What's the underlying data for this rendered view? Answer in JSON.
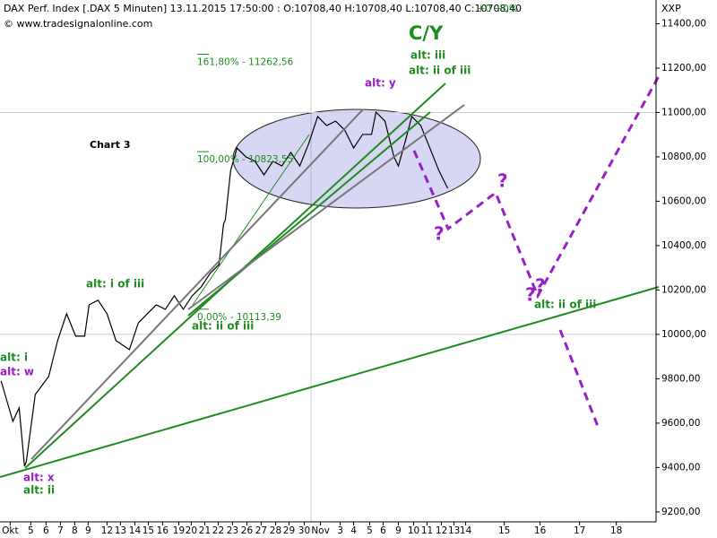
{
  "chart_data": {
    "type": "line",
    "title": "DAX Perf. Index [.DAX  5 Minuten] 13.11.2015 17:50:00 : O:10708,40 H:10708,40 L:10708,40 C:10708,40",
    "subtitle": "+0 +0%",
    "source": "© www.tradesignalonline.com",
    "y_label": "XXP",
    "annotations": [
      "Chart 3",
      "C/Y",
      "alt: iii",
      "alt: ii of iii",
      "alt: y",
      "alt: i of iii",
      "alt: ii of iii",
      "alt: ii of iii",
      "alt: i",
      "alt: w",
      "alt: x",
      "alt: ii",
      "?",
      "?",
      "?",
      "?"
    ],
    "fib_levels": [
      {
        "value": 11262.56,
        "label": "161,80% - 11262,56"
      },
      {
        "value": 10823.55,
        "label": "100,00% - 10823,55"
      },
      {
        "value": 10113.39,
        "label": "0,00% - 10113,39"
      }
    ],
    "fib_color": "#1e8c1e",
    "series": [
      {
        "color": "#000000",
        "x": [
          -2.12,
          -1.28,
          -0.83,
          -0.45,
          -0.32,
          0.32,
          1.28,
          1.92,
          2.56,
          3.21,
          3.85,
          4.17,
          4.81,
          5.45,
          6.09,
          7.05,
          7.69,
          8.33,
          8.97,
          9.62,
          10.26,
          10.9,
          11.54,
          12.18,
          12.82,
          13.46,
          13.78,
          13.91,
          14.29,
          14.74,
          15.38,
          16.03,
          16.67,
          17.31,
          17.95,
          18.59,
          19.23,
          19.87,
          20.51,
          21.15,
          21.79,
          22.44,
          23.08,
          23.72,
          24.36,
          24.68,
          25.32,
          25.96,
          26.28,
          26.73,
          27.24,
          27.88,
          28.53,
          29.17,
          29.81
        ],
        "values": [
          9790,
          9608,
          9669,
          9406,
          9426,
          9729,
          9810,
          9972,
          10093,
          9992,
          9992,
          10133,
          10154,
          10093,
          9972,
          9931,
          10052,
          10093,
          10133,
          10113,
          10174,
          10113,
          10174,
          10214,
          10275,
          10315,
          10497,
          10517,
          10739,
          10840,
          10800,
          10780,
          10719,
          10780,
          10759,
          10820,
          10759,
          10860,
          10982,
          10941,
          10961,
          10921,
          10840,
          10901,
          10901,
          11002,
          10961,
          10800,
          10759,
          10860,
          10982,
          10941,
          10840,
          10739,
          10658
        ]
      }
    ],
    "xlim": [
      -2.2,
      44.7
    ],
    "ylim": [
      9155,
      11507
    ],
    "xticks": [
      {
        "value": -1.47,
        "label": "Okt"
      },
      {
        "value": 0,
        "label": "5"
      },
      {
        "value": 1.09,
        "label": "6"
      },
      {
        "value": 2.12,
        "label": "7"
      },
      {
        "value": 3.14,
        "label": "8"
      },
      {
        "value": 4.1,
        "label": "9"
      },
      {
        "value": 5.45,
        "label": "12"
      },
      {
        "value": 6.41,
        "label": "13"
      },
      {
        "value": 7.44,
        "label": "14"
      },
      {
        "value": 8.4,
        "label": "15"
      },
      {
        "value": 9.42,
        "label": "16"
      },
      {
        "value": 10.58,
        "label": "19"
      },
      {
        "value": 11.47,
        "label": "20"
      },
      {
        "value": 12.44,
        "label": "21"
      },
      {
        "value": 13.4,
        "label": "22"
      },
      {
        "value": 14.42,
        "label": "23"
      },
      {
        "value": 15.45,
        "label": "26"
      },
      {
        "value": 16.47,
        "label": "27"
      },
      {
        "value": 17.5,
        "label": "28"
      },
      {
        "value": 18.46,
        "label": "29"
      },
      {
        "value": 19.55,
        "label": "30"
      },
      {
        "value": 20.71,
        "label": "Nov"
      },
      {
        "value": 22.12,
        "label": "3"
      },
      {
        "value": 23.08,
        "label": "4"
      },
      {
        "value": 24.23,
        "label": "5"
      },
      {
        "value": 25.19,
        "label": "6"
      },
      {
        "value": 26.28,
        "label": "9"
      },
      {
        "value": 27.37,
        "label": "10"
      },
      {
        "value": 28.33,
        "label": "11"
      },
      {
        "value": 29.36,
        "label": "12"
      },
      {
        "value": 30.26,
        "label": "13"
      },
      {
        "value": 31.09,
        "label": "14"
      },
      {
        "value": 33.85,
        "label": "15"
      },
      {
        "value": 36.41,
        "label": "16"
      },
      {
        "value": 39.23,
        "label": "17"
      },
      {
        "value": 41.86,
        "label": "18"
      }
    ],
    "yticks": [
      {
        "value": 9200,
        "label": "9200,00"
      },
      {
        "value": 9400,
        "label": "9400,00"
      },
      {
        "value": 9600,
        "label": "9600,00"
      },
      {
        "value": 9800,
        "label": "9800,00"
      },
      {
        "value": 10000,
        "label": "10000,00"
      },
      {
        "value": 10200,
        "label": "10200,00"
      },
      {
        "value": 10400,
        "label": "10400,00"
      },
      {
        "value": 10600,
        "label": "10600,00"
      },
      {
        "value": 10800,
        "label": "10800,00"
      },
      {
        "value": 11000,
        "label": "11000,00"
      },
      {
        "value": 11200,
        "label": "11200,00"
      },
      {
        "value": 11400,
        "label": "11400,00"
      }
    ],
    "grid": true
  }
}
